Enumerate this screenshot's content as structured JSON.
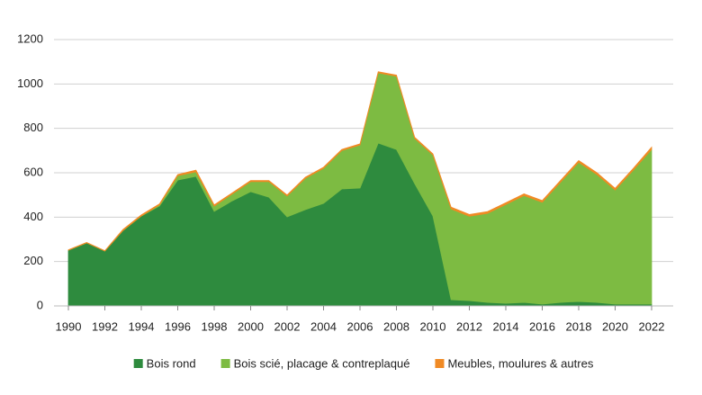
{
  "chart_data": {
    "type": "stacked-area",
    "x": [
      1990,
      1991,
      1992,
      1993,
      1994,
      1995,
      1996,
      1997,
      1998,
      1999,
      2000,
      2001,
      2002,
      2003,
      2004,
      2005,
      2006,
      2007,
      2008,
      2009,
      2010,
      2011,
      2012,
      2013,
      2014,
      2015,
      2016,
      2017,
      2018,
      2019,
      2020,
      2021,
      2022
    ],
    "series": [
      {
        "name": "Bois rond",
        "color": "#2e8b3e",
        "values": [
          251,
          284,
          247,
          340,
          405,
          450,
          567,
          584,
          426,
          474,
          515,
          490,
          401,
          434,
          462,
          527,
          531,
          734,
          705,
          551,
          405,
          28,
          24,
          16,
          12,
          16,
          8,
          16,
          20,
          16,
          8,
          8,
          8
        ]
      },
      {
        "name": "Bois scié, placage & contreplaqué",
        "color": "#7dbb42",
        "values": [
          0,
          0,
          0,
          0,
          0,
          5,
          20,
          20,
          24,
          31,
          45,
          70,
          94,
          141,
          158,
          173,
          194,
          316,
          330,
          204,
          275,
          409,
          380,
          401,
          445,
          481,
          459,
          541,
          627,
          576,
          514,
          604,
          697
        ]
      },
      {
        "name": "Meubles, moulures & autres",
        "color": "#f08a24",
        "values": [
          2,
          2,
          2,
          5,
          5,
          5,
          5,
          8,
          5,
          5,
          5,
          5,
          5,
          5,
          5,
          5,
          5,
          5,
          5,
          5,
          5,
          8,
          8,
          8,
          8,
          8,
          8,
          8,
          8,
          8,
          8,
          8,
          10
        ]
      }
    ],
    "xlim": [
      1990,
      2022
    ],
    "xticks": [
      1990,
      1992,
      1994,
      1996,
      1998,
      2000,
      2002,
      2004,
      2006,
      2008,
      2010,
      2012,
      2014,
      2016,
      2018,
      2020,
      2022
    ],
    "ylim": [
      0,
      1200
    ],
    "yticks": [
      0,
      200,
      400,
      600,
      800,
      1000,
      1200
    ],
    "grid": true,
    "legend": "bottom"
  }
}
